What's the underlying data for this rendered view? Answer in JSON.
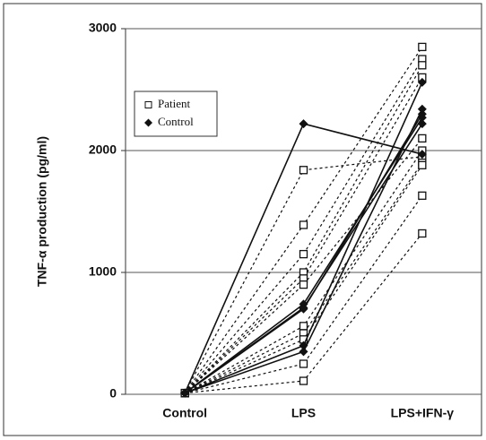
{
  "chart_data": {
    "type": "line",
    "ylabel": "TNF-α production (pg/ml)",
    "categories": [
      "Control",
      "LPS",
      "LPS+IFN-γ"
    ],
    "ylim": [
      0,
      3000
    ],
    "yticks": [
      0,
      1000,
      2000,
      3000
    ],
    "grid": true,
    "legend": "upper left",
    "series": [
      {
        "name": "Patient",
        "color": "#111111",
        "dashed": true,
        "marker": "square",
        "values": [
          [
            10,
            1840,
            1950
          ],
          [
            10,
            1390,
            2850
          ],
          [
            10,
            1150,
            2750
          ],
          [
            10,
            1000,
            2700
          ],
          [
            10,
            950,
            2600
          ],
          [
            10,
            900,
            2100
          ],
          [
            10,
            560,
            2000
          ],
          [
            10,
            500,
            1900
          ],
          [
            10,
            450,
            1880
          ],
          [
            10,
            250,
            1630
          ],
          [
            10,
            110,
            1320
          ]
        ]
      },
      {
        "name": "Control",
        "color": "#111111",
        "dashed": false,
        "marker": "diamond",
        "values": [
          [
            10,
            2220,
            1970
          ],
          [
            10,
            740,
            2270
          ],
          [
            10,
            710,
            2220
          ],
          [
            10,
            700,
            2300
          ],
          [
            10,
            400,
            2560
          ],
          [
            10,
            350,
            2340
          ]
        ]
      }
    ]
  }
}
